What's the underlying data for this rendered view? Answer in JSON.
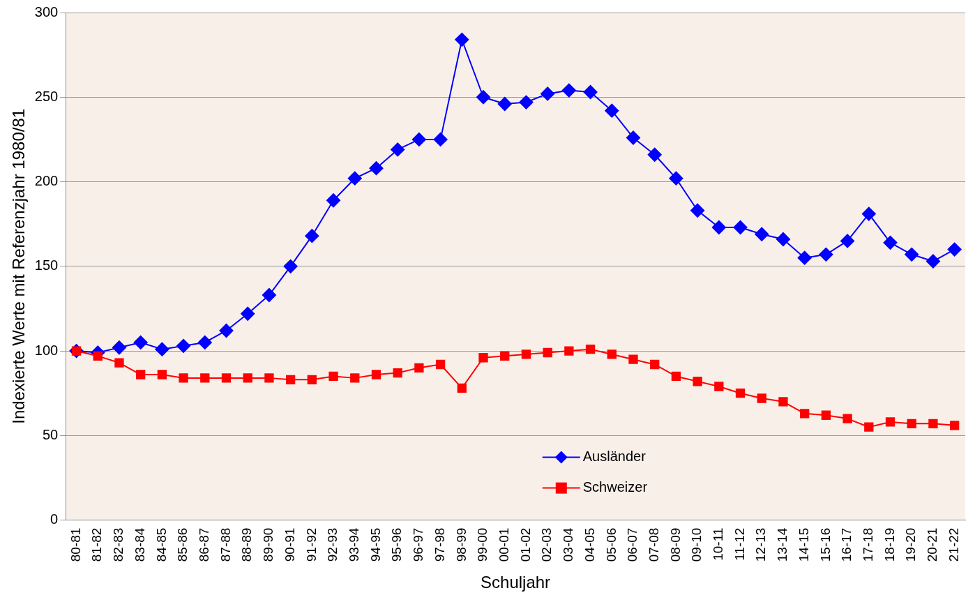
{
  "chart_data": {
    "type": "line",
    "xlabel": "Schuljahr",
    "ylabel": "Indexierte Werte mit Referenzjahr 1980/81",
    "categories": [
      "80-81",
      "81-82",
      "82-83",
      "83-84",
      "84-85",
      "85-86",
      "86-87",
      "87-88",
      "88-89",
      "89-90",
      "90-91",
      "91-92",
      "92-93",
      "93-94",
      "94-95",
      "95-96",
      "96-97",
      "97-98",
      "98-99",
      "99-00",
      "00-01",
      "01-02",
      "02-03",
      "03-04",
      "04-05",
      "05-06",
      "06-07",
      "07-08",
      "08-09",
      "09-10",
      "10-11",
      "11-12",
      "12-13",
      "13-14",
      "14-15",
      "15-16",
      "16-17",
      "17-18",
      "18-19",
      "19-20",
      "20-21",
      "21-22"
    ],
    "series": [
      {
        "name": "Ausländer",
        "color": "#0000ff",
        "marker": "diamond",
        "values": [
          100,
          99,
          102,
          105,
          101,
          103,
          105,
          112,
          122,
          133,
          150,
          168,
          189,
          202,
          208,
          219,
          225,
          225,
          284,
          250,
          246,
          247,
          252,
          254,
          253,
          242,
          226,
          216,
          202,
          183,
          173,
          173,
          169,
          166,
          155,
          157,
          165,
          181,
          164,
          157,
          153,
          160
        ]
      },
      {
        "name": "Schweizer",
        "color": "#ff0000",
        "marker": "square",
        "values": [
          100,
          97,
          93,
          86,
          86,
          84,
          84,
          84,
          84,
          84,
          83,
          83,
          85,
          84,
          86,
          87,
          90,
          92,
          78,
          96,
          97,
          98,
          99,
          100,
          101,
          98,
          95,
          92,
          85,
          82,
          79,
          75,
          72,
          70,
          63,
          62,
          60,
          55,
          58,
          57,
          57,
          56
        ]
      }
    ],
    "ylim": [
      0,
      300
    ],
    "yticks": [
      0,
      50,
      100,
      150,
      200,
      250,
      300
    ],
    "grid": "y",
    "legend": "bottom"
  }
}
